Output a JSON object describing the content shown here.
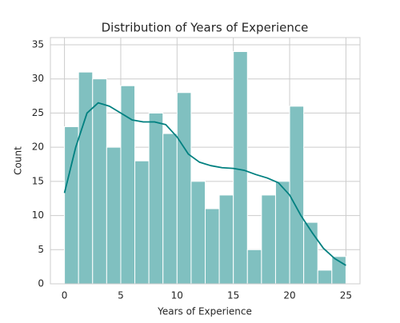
{
  "chart_data": {
    "type": "histogram",
    "title": "Distribution of Years of Experience",
    "xlabel": "Years of Experience",
    "ylabel": "Count",
    "bins": [
      0,
      1.25,
      2.5,
      3.75,
      5,
      6.25,
      7.5,
      8.75,
      10,
      11.25,
      12.5,
      13.75,
      15,
      16.25,
      17.5,
      18.75,
      20,
      21.25,
      22.5,
      23.75,
      25
    ],
    "counts": [
      23,
      31,
      30,
      20,
      29,
      18,
      25,
      22,
      28,
      15,
      11,
      13,
      34,
      5,
      13,
      15,
      26,
      9,
      2,
      4
    ],
    "color": "#80c0c0",
    "edgecolor": "#ffffff",
    "kde": {
      "x": [
        0,
        1,
        2,
        3,
        4,
        5,
        6,
        7,
        8,
        9,
        10,
        11,
        12,
        13,
        14,
        15,
        16,
        17,
        18,
        19,
        20,
        21,
        22,
        23,
        24,
        25
      ],
      "values": [
        13.3,
        20,
        25,
        26.5,
        26,
        25,
        24,
        23.7,
        23.7,
        23.3,
        21.5,
        19,
        17.8,
        17.3,
        17,
        16.9,
        16.6,
        16,
        15.5,
        14.8,
        13,
        10,
        7.5,
        5.2,
        3.7,
        2.7
      ],
      "color": "#008080"
    },
    "xlim": [
      -1.25,
      26.25
    ],
    "ylim": [
      0,
      36.05
    ],
    "xticks": [
      0,
      5,
      10,
      15,
      20,
      25
    ],
    "yticks": [
      0,
      5,
      10,
      15,
      20,
      25,
      30,
      35
    ],
    "grid": true
  }
}
